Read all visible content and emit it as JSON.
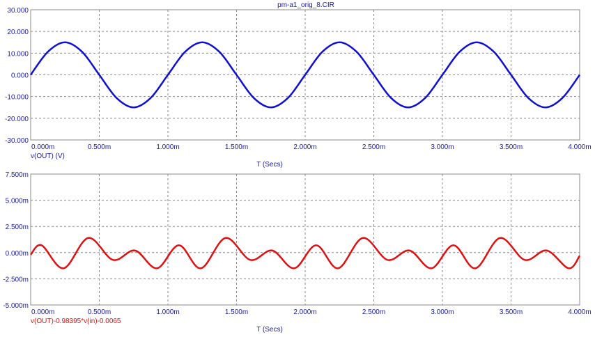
{
  "window_title": "pm-a1_orig_8.CIR",
  "colors": {
    "top_trace": "#1010d0",
    "bottom_trace": "#e01010",
    "text": "#1a1aa0",
    "grid": "#8a8a8a"
  },
  "chart_data": [
    {
      "type": "line",
      "title": "pm-a1_orig_8.CIR",
      "xlabel": "T (Secs)",
      "ylabel": "",
      "xlim": [
        0,
        4.0
      ],
      "ylim": [
        -30,
        30
      ],
      "x_ticks": [
        "0.000m",
        "0.500m",
        "1.000m",
        "1.500m",
        "2.000m",
        "2.500m",
        "3.000m",
        "3.500m",
        "4.000m"
      ],
      "y_ticks": [
        "30.000",
        "20.000",
        "10.000",
        "0.000",
        "-10.000",
        "-20.000",
        "-30.000"
      ],
      "grid": true,
      "series": [
        {
          "name": "v(OUT) (V)",
          "color": "#1010d0",
          "x": [
            0,
            0.125,
            0.25,
            0.375,
            0.5,
            0.625,
            0.75,
            0.875,
            1.0,
            1.125,
            1.25,
            1.375,
            1.5,
            1.625,
            1.75,
            1.875,
            2.0,
            2.125,
            2.25,
            2.375,
            2.5,
            2.625,
            2.75,
            2.875,
            3.0,
            3.125,
            3.25,
            3.375,
            3.5,
            3.625,
            3.75,
            3.875,
            4.0
          ],
          "y": [
            0,
            10.6,
            15,
            10.6,
            0,
            -10.6,
            -15,
            -10.6,
            0,
            10.6,
            15,
            10.6,
            0,
            -10.6,
            -15,
            -10.6,
            0,
            10.6,
            15,
            10.6,
            0,
            -10.6,
            -15,
            -10.6,
            0,
            10.6,
            15,
            10.6,
            0,
            -10.6,
            -15,
            -10.6,
            0
          ]
        }
      ]
    },
    {
      "type": "line",
      "title": "",
      "xlabel": "T (Secs)",
      "ylabel": "",
      "xlim": [
        0,
        4.0
      ],
      "ylim": [
        -5.0,
        7.5
      ],
      "x_ticks": [
        "0.000m",
        "0.500m",
        "1.000m",
        "1.500m",
        "2.000m",
        "2.500m",
        "3.000m",
        "3.500m",
        "4.000m"
      ],
      "y_ticks": [
        "7.500m",
        "5.000m",
        "2.500m",
        "0.000m",
        "-2.500m",
        "-5.000m"
      ],
      "grid": true,
      "series": [
        {
          "name": "v(OUT)-0.98395*v(in)-0.0065",
          "color": "#e01010",
          "x": [
            0,
            0.08,
            0.24,
            0.42,
            0.6,
            0.76,
            0.92,
            1.08,
            1.24,
            1.42,
            1.6,
            1.76,
            1.92,
            2.08,
            2.24,
            2.42,
            2.6,
            2.76,
            2.92,
            3.08,
            3.24,
            3.42,
            3.6,
            3.76,
            3.92,
            4.0
          ],
          "y": [
            -0.2,
            0.7,
            -1.5,
            1.4,
            -0.7,
            0.2,
            -1.5,
            0.7,
            -1.5,
            1.4,
            -0.7,
            0.2,
            -1.5,
            0.7,
            -1.5,
            1.4,
            -0.7,
            0.2,
            -1.5,
            0.7,
            -1.5,
            1.4,
            -0.7,
            0.2,
            -1.5,
            -0.3
          ]
        }
      ]
    }
  ]
}
